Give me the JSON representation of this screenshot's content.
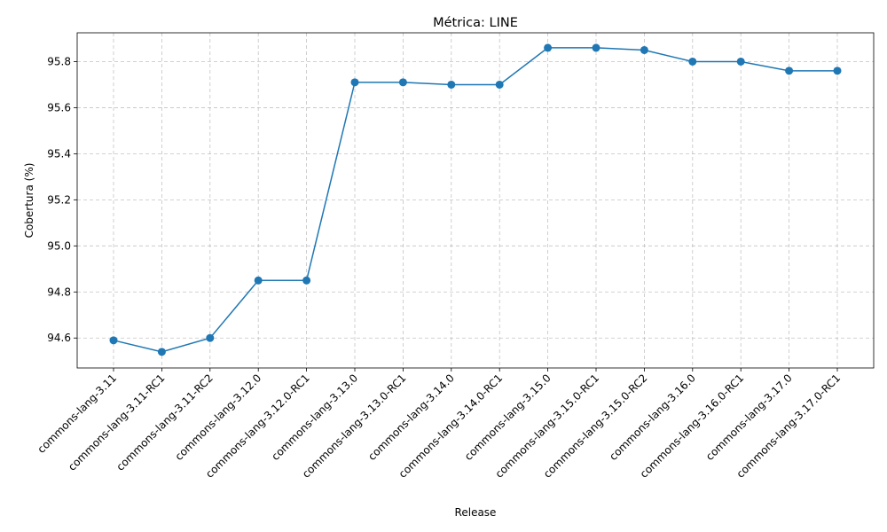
{
  "chart_data": {
    "type": "line",
    "title": "Métrica: LINE",
    "xlabel": "Release",
    "ylabel": "Cobertura (%)",
    "categories": [
      "commons-lang-3.11",
      "commons-lang-3.11-RC1",
      "commons-lang-3.11-RC2",
      "commons-lang-3.12.0",
      "commons-lang-3.12.0-RC1",
      "commons-lang-3.13.0",
      "commons-lang-3.13.0-RC1",
      "commons-lang-3.14.0",
      "commons-lang-3.14.0-RC1",
      "commons-lang-3.15.0",
      "commons-lang-3.15.0-RC1",
      "commons-lang-3.15.0-RC2",
      "commons-lang-3.16.0",
      "commons-lang-3.16.0-RC1",
      "commons-lang-3.17.0",
      "commons-lang-3.17.0-RC1"
    ],
    "series": [
      {
        "color": "#1f77b4",
        "marker": "circle",
        "values": [
          94.59,
          94.54,
          94.6,
          94.85,
          94.85,
          95.71,
          95.71,
          95.7,
          95.7,
          95.86,
          95.86,
          95.85,
          95.8,
          95.8,
          95.76,
          95.76
        ]
      }
    ],
    "yticks": [
      "94.6",
      "94.8",
      "95.0",
      "95.2",
      "95.4",
      "95.6",
      "95.8"
    ],
    "ylim": [
      94.47,
      95.925
    ],
    "grid": true
  }
}
